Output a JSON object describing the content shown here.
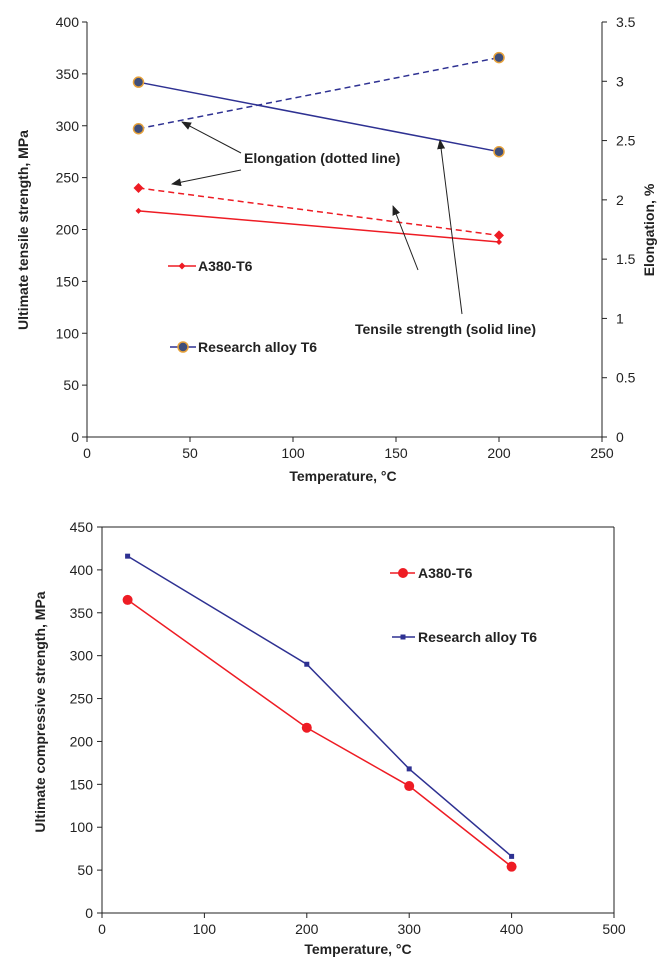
{
  "colors": {
    "a380": "#ee1c24",
    "research": "#2e3192",
    "research_marker_fill": "#3f4e7a",
    "research_marker_edge": "#e6a13a",
    "axis": "#222222"
  },
  "chart_data": [
    {
      "type": "line",
      "title": "",
      "xlabel": "Temperature, °C",
      "ylabel": "Ultimate tensile strength, MPa",
      "y2label": "Elongation, %",
      "xlim": [
        0,
        250
      ],
      "ylim": [
        0,
        400
      ],
      "y2lim": [
        0,
        3.5
      ],
      "x_ticks": [
        "0",
        "50",
        "100",
        "150",
        "200",
        "250"
      ],
      "y_ticks": [
        "0",
        "50",
        "100",
        "150",
        "200",
        "250",
        "300",
        "350",
        "400"
      ],
      "y2_ticks": [
        "0",
        "0.5",
        "1",
        "1.5",
        "2",
        "2.5",
        "3",
        "3.5"
      ],
      "grid": false,
      "legend_position": "left-middle",
      "legend": [
        "A380-T6",
        "Research alloy T6"
      ],
      "series": [
        {
          "name": "A380-T6",
          "metric": "tensile",
          "axis": "left",
          "style": "solid",
          "marker": "small-diamond",
          "x": [
            25,
            200
          ],
          "y": [
            218,
            188
          ]
        },
        {
          "name": "A380-T6",
          "metric": "elongation",
          "axis": "right",
          "style": "dashed",
          "marker": "diamond",
          "x": [
            25,
            200
          ],
          "y": [
            2.1,
            1.7
          ]
        },
        {
          "name": "Research alloy T6",
          "metric": "tensile",
          "axis": "left",
          "style": "solid",
          "marker": "circle",
          "x": [
            25,
            200
          ],
          "y": [
            342,
            275
          ]
        },
        {
          "name": "Research alloy T6",
          "metric": "elongation",
          "axis": "right",
          "style": "dashed",
          "marker": "circle",
          "x": [
            25,
            200
          ],
          "y": [
            2.6,
            3.2
          ]
        }
      ],
      "annotations": [
        "Elongation (dotted line)",
        "Tensile strength (solid line)"
      ]
    },
    {
      "type": "line",
      "title": "",
      "xlabel": "Temperature, °C",
      "ylabel": "Ultimate compressive strength, MPa",
      "xlim": [
        0,
        500
      ],
      "ylim": [
        0,
        450
      ],
      "x_ticks": [
        "0",
        "100",
        "200",
        "300",
        "400",
        "500"
      ],
      "y_ticks": [
        "0",
        "50",
        "100",
        "150",
        "200",
        "250",
        "300",
        "350",
        "400",
        "450"
      ],
      "grid": false,
      "legend_position": "top-right",
      "legend": [
        "A380-T6",
        "Research alloy T6"
      ],
      "series": [
        {
          "name": "A380-T6",
          "marker": "circle",
          "x": [
            25,
            200,
            300,
            400
          ],
          "y": [
            365,
            216,
            148,
            54
          ]
        },
        {
          "name": "Research alloy T6",
          "marker": "square",
          "x": [
            25,
            200,
            300,
            400
          ],
          "y": [
            416,
            290,
            168,
            66
          ]
        }
      ]
    }
  ]
}
